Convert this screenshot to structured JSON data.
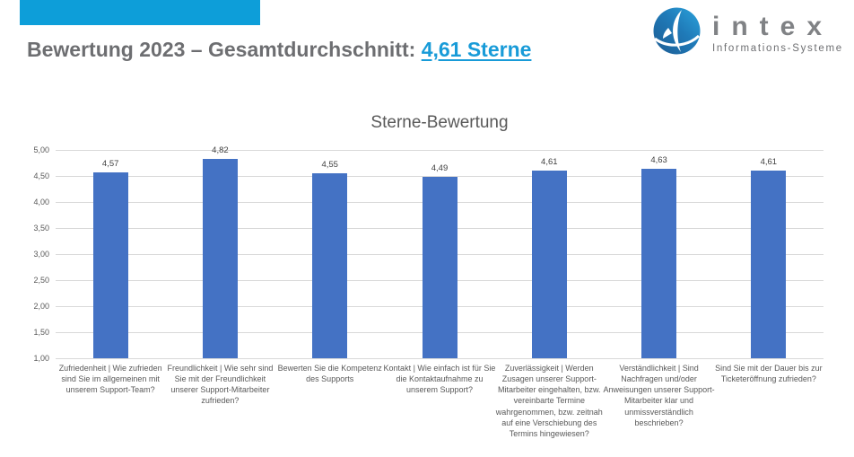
{
  "header": {
    "title_prefix": "Bewertung 2023 – Gesamtdurchschnitt: ",
    "title_highlight": "4,61 Sterne",
    "accent_color": "#0D9ED9",
    "title_color": "#6D6E71",
    "highlight_color": "#189BD8"
  },
  "logo": {
    "name": "intex",
    "subtitle": "Informations-Systeme",
    "mark_icon": "globe-sail-icon"
  },
  "chart_data": {
    "type": "bar",
    "title": "Sterne-Bewertung",
    "categories": [
      "Zufriedenheit | Wie zufrieden sind Sie im allgemeinen mit unserem Support-Team?",
      "Freundlichkeit | Wie sehr sind Sie mit der Freundlichkeit unserer Support-Mitarbeiter zufrieden?",
      "Bewerten Sie die Kompetenz des Supports",
      "Kontakt | Wie einfach ist für Sie die Kontaktaufnahme zu unserem Support?",
      "Zuverlässigkeit | Werden Zusagen unserer Support-Mitarbeiter eingehalten, bzw. vereinbarte Termine wahrgenommen, bzw. zeitnah auf eine Verschiebung des Termins hingewiesen?",
      "Verständlichkeit | Sind Nachfragen und/oder Anweisungen unserer Support-Mitarbeiter klar und unmissverständlich beschrieben?",
      "Sind Sie mit der Dauer bis zur Ticketeröffnung zufrieden?"
    ],
    "values": [
      4.57,
      4.82,
      4.55,
      4.49,
      4.61,
      4.63,
      4.61
    ],
    "value_labels": [
      "4,57",
      "4,82",
      "4,55",
      "4,49",
      "4,61",
      "4,63",
      "4,61"
    ],
    "ylim": [
      1.0,
      5.0
    ],
    "ytick_step": 0.5,
    "ytick_labels": [
      "5,00",
      "4,50",
      "4,00",
      "3,50",
      "3,00",
      "2,50",
      "2,00",
      "1,50",
      "1,00"
    ],
    "grid": true,
    "legend": "none",
    "bar_color": "#4472C4",
    "xlabel": "",
    "ylabel": ""
  }
}
